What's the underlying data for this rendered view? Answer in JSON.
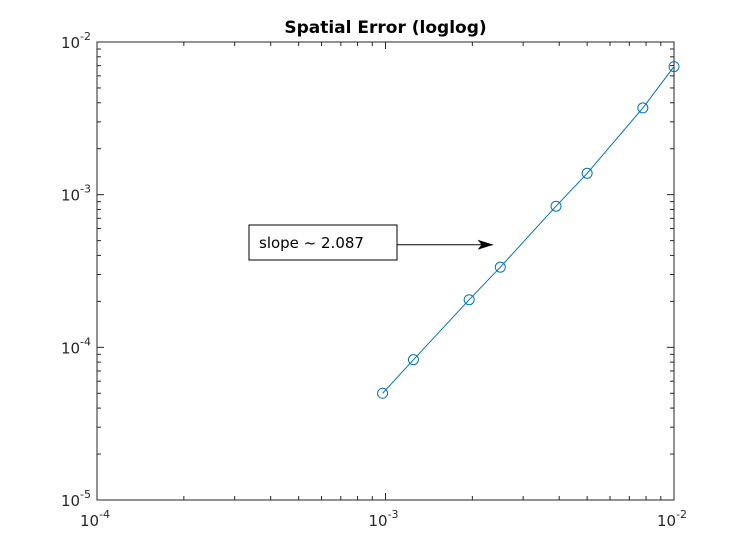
{
  "chart_data": {
    "type": "line",
    "title": "Spatial Error (loglog)",
    "xlabel": "",
    "ylabel": "",
    "xscale": "log",
    "yscale": "log",
    "xlim": [
      0.0001,
      0.01
    ],
    "ylim": [
      1e-05,
      0.01
    ],
    "grid": false,
    "marker": "circle",
    "color": "#0072BD",
    "x_ticks": [
      {
        "base": "10",
        "exp": "-4",
        "value": 0.0001
      },
      {
        "base": "10",
        "exp": "-3",
        "value": 0.001
      },
      {
        "base": "10",
        "exp": "-2",
        "value": 0.01
      }
    ],
    "y_ticks": [
      {
        "base": "10",
        "exp": "-5",
        "value": 1e-05
      },
      {
        "base": "10",
        "exp": "-4",
        "value": 0.0001
      },
      {
        "base": "10",
        "exp": "-3",
        "value": 0.001
      },
      {
        "base": "10",
        "exp": "-2",
        "value": 0.01
      }
    ],
    "series": [
      {
        "x": [
          0.000977,
          0.00125,
          0.00195,
          0.0025,
          0.0039,
          0.005,
          0.0078,
          0.01
        ],
        "y": [
          5e-05,
          8.3e-05,
          0.000205,
          0.000335,
          0.00084,
          0.00138,
          0.0037,
          0.0069
        ]
      }
    ],
    "annotation": {
      "text": "slope ~ 2.087",
      "arrow_to": [
        0.00235,
        0.00047
      ],
      "arrow_from": [
        0.00104,
        0.00047
      ]
    }
  }
}
